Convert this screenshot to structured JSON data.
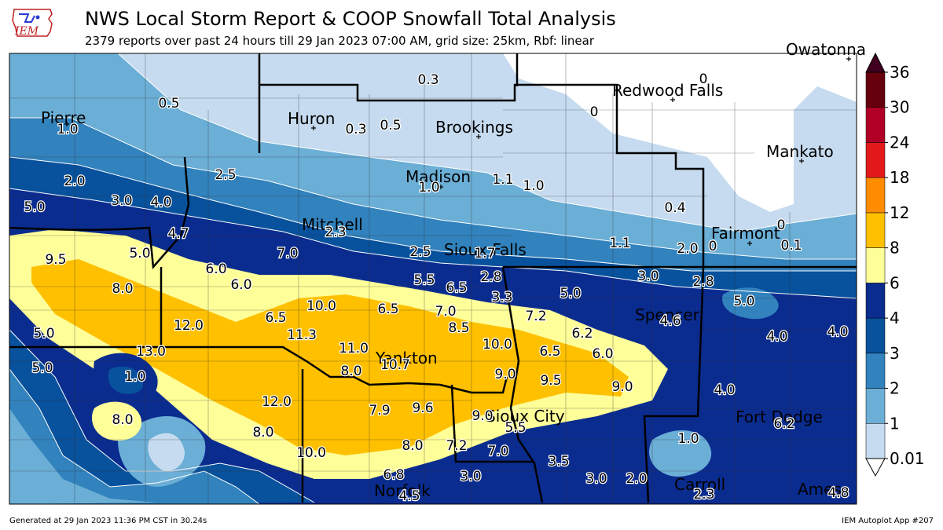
{
  "header": {
    "logo_text": "IEM",
    "title": "NWS Local Storm Report & COOP Snowfall Total Analysis",
    "subtitle": "2379 reports over past 24 hours till 29 Jan 2023 07:00 AM, grid size: 25km, Rbf: linear"
  },
  "footer": {
    "left": "Generated at 29 Jan 2023 11:36 PM CST in 30.24s",
    "right": "IEM Autoplot App #207"
  },
  "colorbar": {
    "levels": [
      "0.01",
      "1",
      "2",
      "3",
      "4",
      "6",
      "8",
      "12",
      "18",
      "24",
      "30",
      "36"
    ],
    "colors": [
      "#c6dbef",
      "#6baed6",
      "#3182bd",
      "#08519c",
      "#0b2c8f",
      "#ffff99",
      "#ffc000",
      "#ff8c00",
      "#e31a1c",
      "#b10026",
      "#67000d",
      "#3f0020"
    ]
  },
  "map": {
    "cities": [
      {
        "name": "Pierre"
      },
      {
        "name": "Huron"
      },
      {
        "name": "Brookings"
      },
      {
        "name": "Redwood Falls"
      },
      {
        "name": "Madison"
      },
      {
        "name": "Mankato"
      },
      {
        "name": "Mitchell"
      },
      {
        "name": "Sioux Falls"
      },
      {
        "name": "Fairmont"
      },
      {
        "name": "Spencer"
      },
      {
        "name": "Yankton"
      },
      {
        "name": "Sioux City"
      },
      {
        "name": "Fort Dodge"
      },
      {
        "name": "Carroll"
      },
      {
        "name": "Norfolk"
      },
      {
        "name": "Ames"
      },
      {
        "name": "Owatonna"
      }
    ],
    "values": [
      "0.5",
      "1.0",
      "0.3",
      "0.3",
      "0.5",
      "0",
      "0",
      "2.0",
      "2.5",
      "1.0",
      "1.1",
      "1.0",
      "3.0",
      "4.0",
      "5.0",
      "4.7",
      "2.3",
      "0.4",
      "0",
      "5.0",
      "7.0",
      "2.5",
      "1.7",
      "1.1",
      "2.0",
      "0",
      "0.1",
      "9.5",
      "6.0",
      "5.5",
      "6.5",
      "2.8",
      "3.0",
      "2.8",
      "8.0",
      "6.0",
      "10.0",
      "6.5",
      "7.0",
      "3.3",
      "5.0",
      "5.0",
      "6.5",
      "7.2",
      "12.0",
      "11.3",
      "8.5",
      "4.6",
      "5.0",
      "13.0",
      "11.0",
      "10.7",
      "10.0",
      "6.2",
      "6.0",
      "4.0",
      "4.0",
      "5.0",
      "1.0",
      "8.0",
      "9.0",
      "6.5",
      "9.5",
      "9.0",
      "4.0",
      "12.0",
      "7.9",
      "9.6",
      "9.0",
      "5.5",
      "8.0",
      "6.2",
      "8.0",
      "1.0",
      "10.0",
      "8.0",
      "7.2",
      "7.0",
      "3.5",
      "6.8",
      "3.0",
      "3.0",
      "2.0",
      "2.3",
      "4.5",
      "4.8"
    ]
  }
}
